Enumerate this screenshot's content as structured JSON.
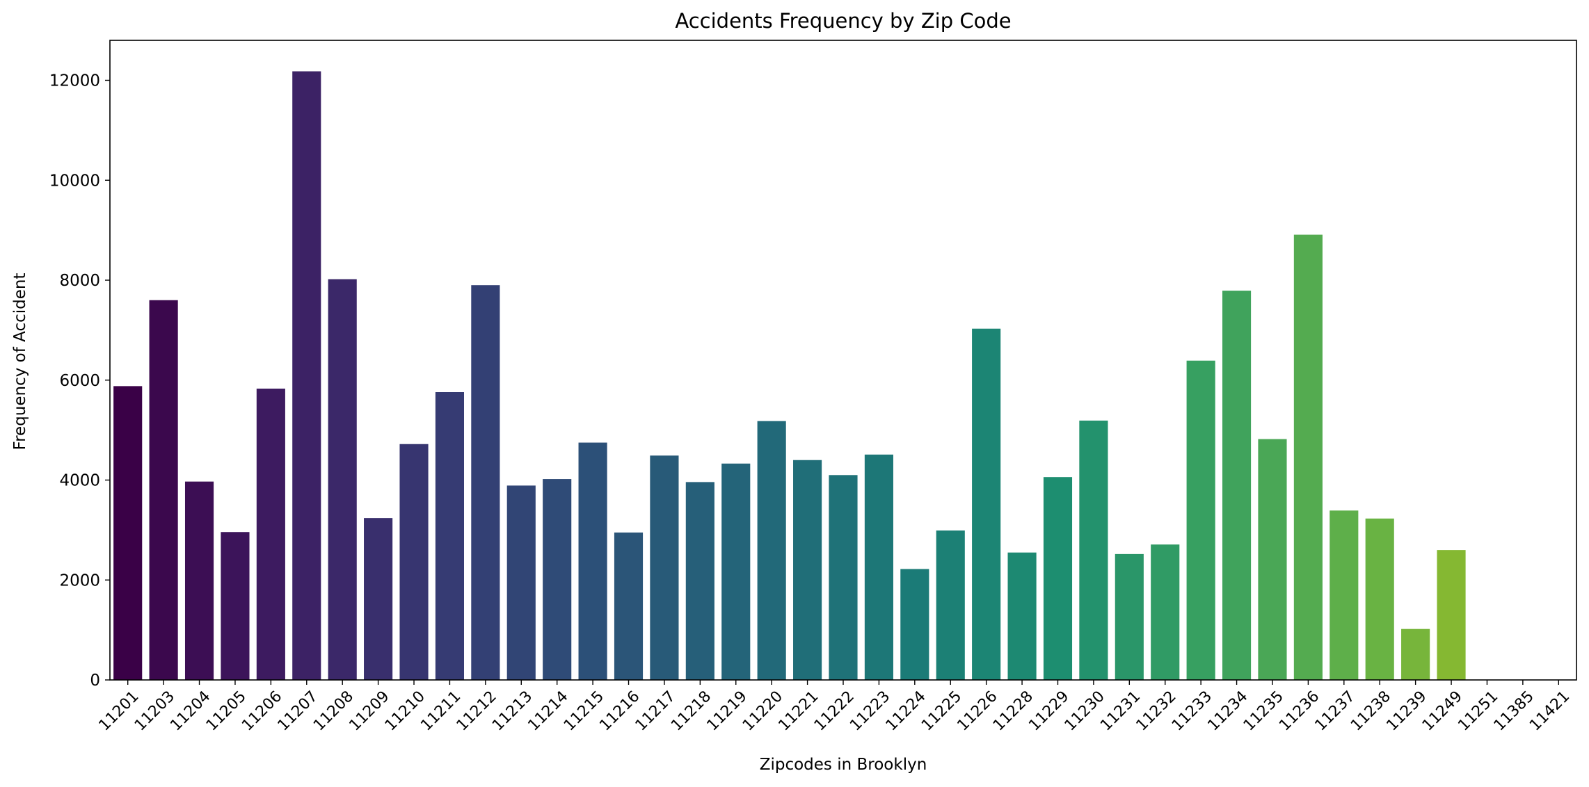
{
  "chart_data": {
    "type": "bar",
    "title": "Accidents Frequency by Zip Code",
    "xlabel": "Zipcodes in Brooklyn",
    "ylabel": "Frequency of Accident",
    "categories": [
      "11201",
      "11203",
      "11204",
      "11205",
      "11206",
      "11207",
      "11208",
      "11209",
      "11210",
      "11211",
      "11212",
      "11213",
      "11214",
      "11215",
      "11216",
      "11217",
      "11218",
      "11219",
      "11220",
      "11221",
      "11222",
      "11223",
      "11224",
      "11225",
      "11226",
      "11228",
      "11229",
      "11230",
      "11231",
      "11232",
      "11233",
      "11234",
      "11235",
      "11236",
      "11237",
      "11238",
      "11239",
      "11249",
      "11251",
      "11385",
      "11421"
    ],
    "values": [
      5880,
      7600,
      3970,
      2960,
      5830,
      12180,
      8020,
      3240,
      4720,
      5760,
      7900,
      3890,
      4020,
      4750,
      2950,
      4490,
      3960,
      4330,
      5180,
      4400,
      4100,
      4510,
      2220,
      2990,
      7030,
      2550,
      4060,
      5190,
      2520,
      2710,
      6390,
      7790,
      4820,
      8910,
      3390,
      3230,
      1020,
      2600,
      2,
      1,
      1
    ],
    "ylim": [
      0,
      12800
    ],
    "yticks": [
      0,
      2000,
      4000,
      6000,
      8000,
      10000,
      12000
    ],
    "colormap": "viridis",
    "grid": false,
    "legend": "none"
  }
}
